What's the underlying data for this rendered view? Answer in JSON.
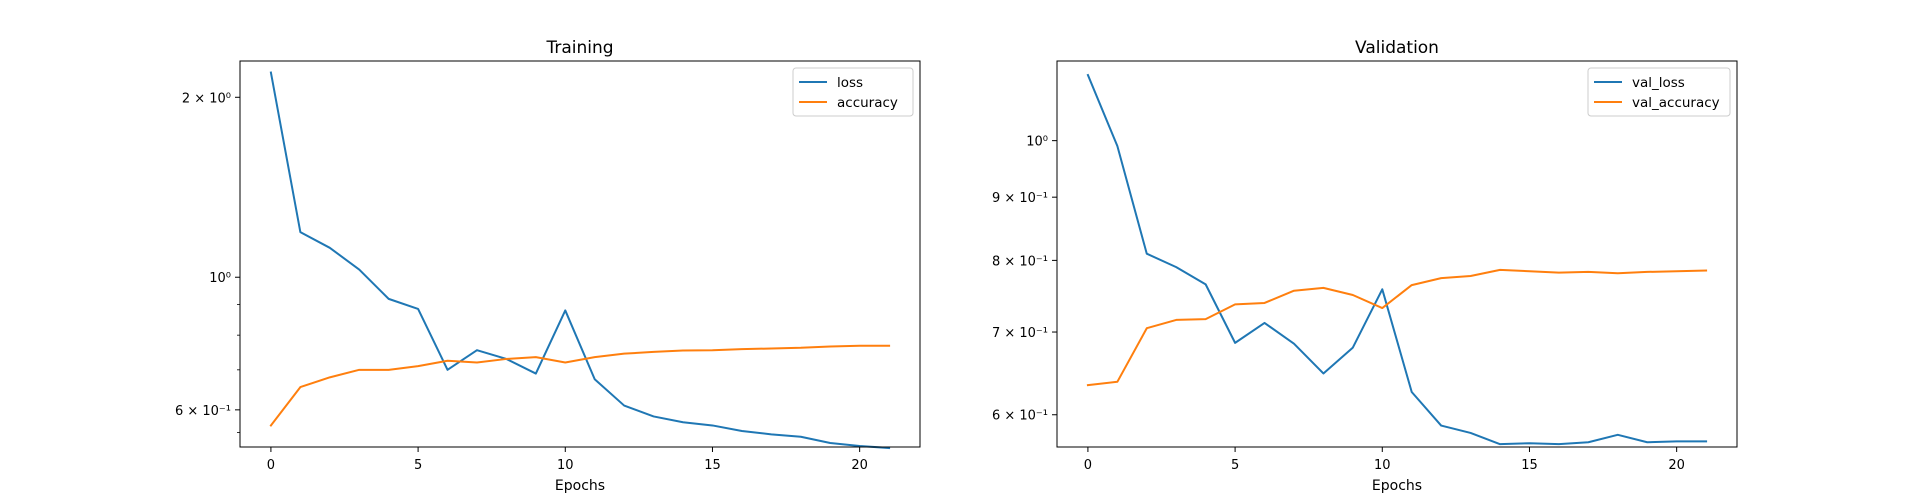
{
  "chart_data": [
    {
      "type": "line",
      "title": "Training",
      "xlabel": "Epochs",
      "ylabel": "",
      "yscale": "log",
      "xlim": [
        -1.05,
        22.05
      ],
      "ylim": [
        0.52,
        2.3
      ],
      "grid": false,
      "legend_position": "top-right",
      "x_ticks": [
        0,
        5,
        10,
        15,
        20
      ],
      "y_ticks": [
        {
          "value": 2.0,
          "label": "2 × 10⁰"
        },
        {
          "value": 1.0,
          "label": "10⁰"
        },
        {
          "value": 0.6,
          "label": "6 × 10⁻¹"
        }
      ],
      "y_minor_ticks": [
        0.9,
        0.8,
        0.7,
        0.55
      ],
      "x": [
        0,
        1,
        2,
        3,
        4,
        5,
        6,
        7,
        8,
        9,
        10,
        11,
        12,
        13,
        14,
        15,
        16,
        17,
        18,
        19,
        20,
        21
      ],
      "series": [
        {
          "name": "loss",
          "color": "#1f77b4",
          "values": [
            2.2,
            1.19,
            1.12,
            1.03,
            0.92,
            0.885,
            0.7,
            0.755,
            0.73,
            0.69,
            0.88,
            0.675,
            0.61,
            0.585,
            0.572,
            0.565,
            0.553,
            0.546,
            0.541,
            0.528,
            0.522,
            0.518
          ]
        },
        {
          "name": "accuracy",
          "color": "#ff7f0e",
          "values": [
            0.565,
            0.655,
            0.68,
            0.7,
            0.7,
            0.71,
            0.725,
            0.72,
            0.73,
            0.735,
            0.72,
            0.735,
            0.745,
            0.75,
            0.754,
            0.755,
            0.758,
            0.76,
            0.762,
            0.766,
            0.768,
            0.768
          ]
        }
      ]
    },
    {
      "type": "line",
      "title": "Validation",
      "xlabel": "Epochs",
      "ylabel": "",
      "yscale": "log",
      "xlim": [
        -1.05,
        22.05
      ],
      "ylim": [
        0.565,
        1.16
      ],
      "grid": false,
      "legend_position": "top-right",
      "x_ticks": [
        0,
        5,
        10,
        15,
        20
      ],
      "y_ticks": [
        {
          "value": 1.0,
          "label": "10⁰"
        },
        {
          "value": 0.9,
          "label": "9 × 10⁻¹"
        },
        {
          "value": 0.8,
          "label": "8 × 10⁻¹"
        },
        {
          "value": 0.7,
          "label": "7 × 10⁻¹"
        },
        {
          "value": 0.6,
          "label": "6 × 10⁻¹"
        }
      ],
      "y_minor_ticks": [],
      "x": [
        0,
        1,
        2,
        3,
        4,
        5,
        6,
        7,
        8,
        9,
        10,
        11,
        12,
        13,
        14,
        15,
        16,
        17,
        18,
        19,
        20,
        21
      ],
      "series": [
        {
          "name": "val_loss",
          "color": "#1f77b4",
          "values": [
            1.13,
            0.99,
            0.81,
            0.79,
            0.765,
            0.686,
            0.712,
            0.685,
            0.648,
            0.68,
            0.758,
            0.626,
            0.588,
            0.58,
            0.568,
            0.569,
            0.568,
            0.57,
            0.578,
            0.57,
            0.571,
            0.571
          ]
        },
        {
          "name": "val_accuracy",
          "color": "#ff7f0e",
          "values": [
            0.634,
            0.638,
            0.705,
            0.716,
            0.717,
            0.737,
            0.739,
            0.756,
            0.76,
            0.75,
            0.732,
            0.764,
            0.774,
            0.777,
            0.786,
            0.784,
            0.782,
            0.783,
            0.781,
            0.783,
            0.784,
            0.785
          ]
        }
      ]
    }
  ]
}
